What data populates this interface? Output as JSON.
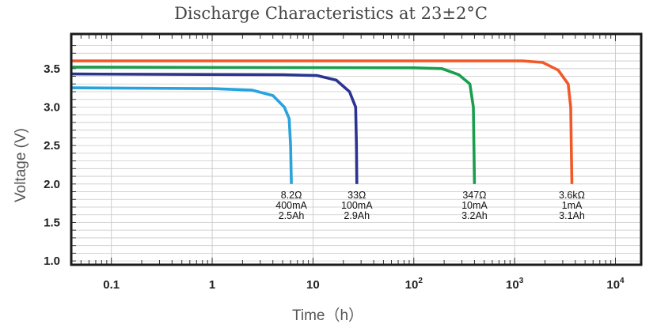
{
  "chart_data": {
    "type": "line",
    "title": "Discharge Characteristics at 23±2°C",
    "xlabel": "Time（h）",
    "ylabel": "Voltage (V)",
    "x_scale": "log",
    "xlim": [
      0.04,
      18000
    ],
    "ylim": [
      0.95,
      3.95
    ],
    "x_ticks": [
      {
        "value": 0.1,
        "label": "0.1"
      },
      {
        "value": 1,
        "label": "1"
      },
      {
        "value": 10,
        "label": "10"
      },
      {
        "value": 100,
        "base": "10",
        "exp": "2"
      },
      {
        "value": 1000,
        "base": "10",
        "exp": "3"
      },
      {
        "value": 10000,
        "base": "10",
        "exp": "4"
      }
    ],
    "y_ticks": [
      {
        "value": 3.5,
        "label": "3.5"
      },
      {
        "value": 3.0,
        "label": "3.0"
      },
      {
        "value": 2.5,
        "label": "2.5"
      },
      {
        "value": 2.0,
        "label": "2.0"
      },
      {
        "value": 1.5,
        "label": "1.5"
      },
      {
        "value": 1.0,
        "label": "1.0"
      }
    ],
    "grid": true,
    "series": [
      {
        "color": "#29a3dc",
        "annotation": [
          "8.2Ω",
          "400mA",
          "2.5Ah"
        ],
        "points": [
          [
            0.04,
            3.25
          ],
          [
            1,
            3.24
          ],
          [
            2.5,
            3.22
          ],
          [
            4,
            3.15
          ],
          [
            5.2,
            3.0
          ],
          [
            5.8,
            2.85
          ],
          [
            6,
            2.5
          ],
          [
            6.1,
            2.0
          ]
        ]
      },
      {
        "color": "#2b3590",
        "annotation": [
          "33Ω",
          "100mA",
          "2.9Ah"
        ],
        "points": [
          [
            0.04,
            3.43
          ],
          [
            5,
            3.42
          ],
          [
            11,
            3.41
          ],
          [
            17,
            3.35
          ],
          [
            23,
            3.2
          ],
          [
            26.5,
            3.0
          ],
          [
            27,
            2.5
          ],
          [
            27.2,
            2.0
          ]
        ]
      },
      {
        "color": "#1a9e4e",
        "annotation": [
          "347Ω",
          "10mA",
          "3.2Ah"
        ],
        "points": [
          [
            0.04,
            3.52
          ],
          [
            100,
            3.51
          ],
          [
            190,
            3.5
          ],
          [
            280,
            3.42
          ],
          [
            360,
            3.3
          ],
          [
            390,
            3.0
          ],
          [
            395,
            2.5
          ],
          [
            400,
            2.0
          ]
        ]
      },
      {
        "color": "#f05a28",
        "annotation": [
          "3.6kΩ",
          "1mA",
          "3.1Ah"
        ],
        "points": [
          [
            0.04,
            3.6
          ],
          [
            1200,
            3.6
          ],
          [
            1900,
            3.58
          ],
          [
            2700,
            3.48
          ],
          [
            3400,
            3.3
          ],
          [
            3600,
            3.0
          ],
          [
            3650,
            2.5
          ],
          [
            3700,
            2.0
          ]
        ]
      }
    ]
  }
}
